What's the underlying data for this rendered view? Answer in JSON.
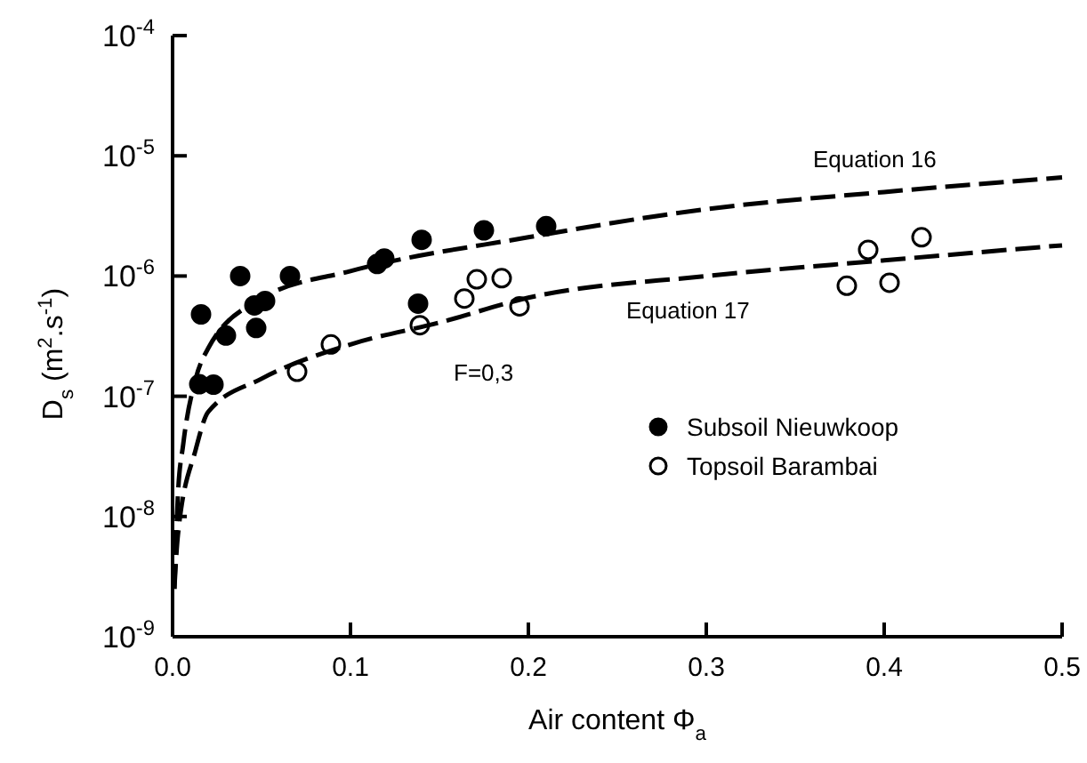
{
  "chart_data": {
    "type": "scatter",
    "xlabel": "Air content Φ$_{a}$",
    "ylabel": "D$_{s}$ (m$^{2}$.s$^{-1}$)",
    "log": "y",
    "xlim": [
      0,
      0.5
    ],
    "ylim": [
      1e-09,
      0.0001
    ],
    "xticks": [
      {
        "value": 0,
        "label": "0.0"
      },
      0.1,
      0.2,
      0.3,
      0.4,
      0.5
    ],
    "yticks": [
      {
        "value": 1e-09,
        "label": "10$^{-9}$"
      },
      {
        "value": 1e-08,
        "label": "10$^{-8}$"
      },
      {
        "value": 1e-07,
        "label": "10$^{-7}$"
      },
      {
        "value": 1e-06,
        "label": "10$^{-6}$"
      },
      {
        "value": 1e-05,
        "label": "10$^{-5}$"
      },
      {
        "value": 0.0001,
        "label": "10$^{-4}$"
      }
    ],
    "grid": false,
    "legend": "right",
    "series": [
      {
        "name": "Subsoil Nieuwkoop",
        "marker": "circle",
        "color": "#000000",
        "x": [
          0.016,
          0.038,
          0.066,
          0.03,
          0.046,
          0.052,
          0.047,
          0.015,
          0.023,
          0.115,
          0.119,
          0.14,
          0.175,
          0.21,
          0.138
        ],
        "values": [
          4.8e-07,
          1e-06,
          1e-06,
          3.2e-07,
          5.7e-07,
          6.2e-07,
          3.7e-07,
          1.26e-07,
          1.25e-07,
          1.26e-06,
          1.4e-06,
          2e-06,
          2.4e-06,
          2.6e-06,
          5.9e-07
        ]
      },
      {
        "name": "Topsoil Barambai",
        "marker": "circle",
        "color": "#ffffff",
        "x": [
          0.07,
          0.089,
          0.139,
          0.164,
          0.171,
          0.185,
          0.195,
          0.379,
          0.391,
          0.403,
          0.421
        ],
        "values": [
          1.6e-07,
          2.7e-07,
          3.9e-07,
          6.5e-07,
          9.4e-07,
          9.6e-07,
          5.6e-07,
          8.3e-07,
          1.65e-06,
          8.8e-07,
          2.1e-06
        ]
      },
      {
        "name": "Equation 16",
        "type": "line",
        "marker": "none",
        "color": "#000000",
        "line_style": "dashed",
        "x": [
          0.001,
          0.003,
          0.006,
          0.013,
          0.02,
          0.05,
          0.1,
          0.2,
          0.3,
          0.4,
          0.5
        ],
        "values": [
          2.5e-09,
          1.5e-08,
          4e-08,
          1.4e-07,
          2.5e-07,
          6.5e-07,
          1.1e-06,
          2.1e-06,
          3.6e-06,
          5e-06,
          6.6e-06
        ]
      },
      {
        "name": "Equation 17",
        "type": "line",
        "marker": "none",
        "color": "#000000",
        "line_style": "dashed",
        "x": [
          0.001,
          0.003,
          0.013,
          0.02,
          0.05,
          0.1,
          0.15,
          0.2,
          0.3,
          0.4,
          0.5
        ],
        "values": [
          2.5e-09,
          7e-09,
          3.6e-08,
          7.4e-08,
          1.4e-07,
          2.7e-07,
          4.1e-07,
          6.6e-07,
          1e-06,
          1.35e-06,
          1.8e-06
        ]
      }
    ],
    "annotations": [
      "F=0,3"
    ]
  }
}
